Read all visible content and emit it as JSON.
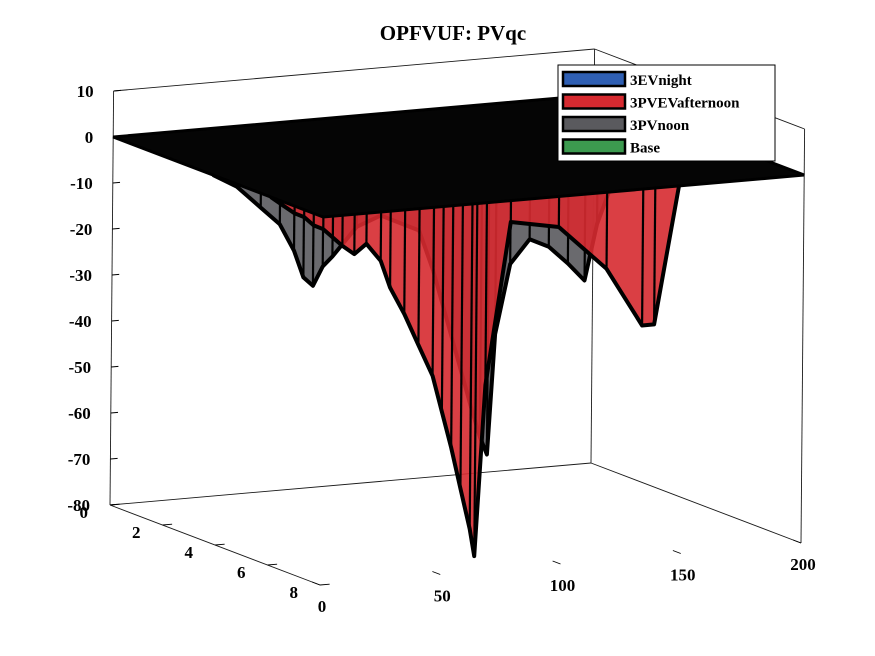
{
  "chart_data": {
    "type": "area",
    "title": "OPFVUF: PVqc",
    "xlabel": "",
    "ylabel": "",
    "zlabel": "",
    "x_ticks": [
      "0",
      "50",
      "100",
      "150",
      "200"
    ],
    "y_ticks": [
      "0",
      "2",
      "4",
      "6",
      "8"
    ],
    "z_ticks": [
      "10",
      "0",
      "-10",
      "-20",
      "-30",
      "-40",
      "-50",
      "-60",
      "-70",
      "-80"
    ],
    "xlim": [
      0,
      200
    ],
    "ylim": [
      0,
      8
    ],
    "zlim": [
      -80,
      10
    ],
    "legend_position": "top-right",
    "grid": false,
    "series": [
      {
        "name": "3EVnight",
        "color": "#2f5fb3",
        "points": []
      },
      {
        "name": "3PVEVafternoon",
        "color": "#d62a30",
        "points": [
          [
            0,
            0
          ],
          [
            5,
            -2
          ],
          [
            10,
            -4
          ],
          [
            14,
            -5
          ],
          [
            18,
            -7
          ],
          [
            22,
            -8
          ],
          [
            26,
            -10
          ],
          [
            30,
            -12
          ],
          [
            35,
            -14
          ],
          [
            40,
            -12
          ],
          [
            46,
            -16
          ],
          [
            50,
            -22
          ],
          [
            56,
            -28
          ],
          [
            62,
            -35
          ],
          [
            68,
            -42
          ],
          [
            72,
            -50
          ],
          [
            76,
            -58
          ],
          [
            80,
            -67
          ],
          [
            84,
            -76
          ],
          [
            86,
            -82
          ],
          [
            90,
            -45
          ],
          [
            100,
            -10
          ],
          [
            120,
            -12
          ],
          [
            140,
            -22
          ],
          [
            155,
            -35
          ],
          [
            160,
            -35
          ],
          [
            170,
            -5
          ],
          [
            190,
            0
          ]
        ]
      },
      {
        "name": "3PVnoon",
        "color": "#5a5a5e",
        "points": [
          [
            0,
            0
          ],
          [
            10,
            -3
          ],
          [
            20,
            -8
          ],
          [
            28,
            -12
          ],
          [
            34,
            -18
          ],
          [
            38,
            -24
          ],
          [
            42,
            -26
          ],
          [
            46,
            -22
          ],
          [
            50,
            -20
          ],
          [
            60,
            -14
          ],
          [
            70,
            -12
          ],
          [
            86,
            -16
          ],
          [
            92,
            -25
          ],
          [
            100,
            -40
          ],
          [
            108,
            -55
          ],
          [
            112,
            -62
          ],
          [
            115,
            -66
          ],
          [
            118,
            -40
          ],
          [
            124,
            -25
          ],
          [
            132,
            -20
          ],
          [
            140,
            -22
          ],
          [
            148,
            -26
          ],
          [
            155,
            -30
          ],
          [
            160,
            -18
          ],
          [
            170,
            -4
          ],
          [
            190,
            0
          ]
        ]
      },
      {
        "name": "Base",
        "color": "#3c9a4f",
        "points": []
      }
    ]
  }
}
